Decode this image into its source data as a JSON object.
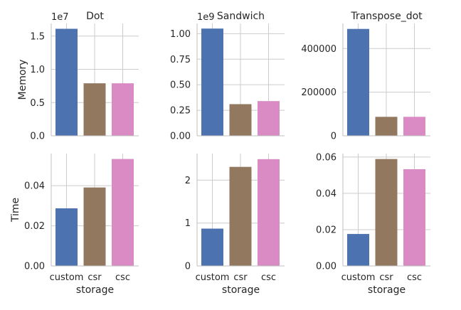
{
  "chart_data": {
    "type": "bar",
    "layout": "facet-grid",
    "row_labels": [
      "Memory",
      "Time"
    ],
    "xlabel": "storage",
    "categories": [
      "custom",
      "csr",
      "csc"
    ],
    "colors": [
      "#4c72b0",
      "#937860",
      "#da8bc3"
    ],
    "grid": true,
    "panels": [
      {
        "title": "Dot",
        "row": "Memory",
        "ylabel": "Memory",
        "offset_label": "1e7",
        "values": [
          16.1,
          7.9,
          7.9
        ],
        "ylim": [
          0,
          16.9
        ],
        "yticks": [
          0,
          0.5,
          1.0,
          1.5
        ],
        "ytick_scale": 10,
        "ytick_labels": [
          "0.0",
          "0.5",
          "1.0",
          "1.5"
        ]
      },
      {
        "title": "Sandwich",
        "row": "Memory",
        "ylabel": "",
        "offset_label": "1e9",
        "values": [
          1.05,
          0.31,
          0.34
        ],
        "ylim": [
          0,
          1.1
        ],
        "yticks": [
          0,
          0.25,
          0.5,
          0.75,
          1.0
        ],
        "ytick_scale": 1,
        "ytick_labels": [
          "0.00",
          "0.25",
          "0.50",
          "0.75",
          "1.00"
        ]
      },
      {
        "title": "Transpose_dot",
        "row": "Memory",
        "ylabel": "",
        "offset_label": "",
        "values": [
          490000,
          87000,
          87000
        ],
        "ylim": [
          0,
          515000
        ],
        "yticks": [
          0,
          200000,
          400000
        ],
        "ytick_scale": 1,
        "ytick_labels": [
          "0",
          "200000",
          "400000"
        ]
      },
      {
        "title": "",
        "row": "Time",
        "ylabel": "Time",
        "offset_label": "",
        "values": [
          0.0287,
          0.0391,
          0.0533
        ],
        "ylim": [
          0,
          0.056
        ],
        "yticks": [
          0,
          0.02,
          0.04
        ],
        "ytick_scale": 1,
        "ytick_labels": [
          "0.00",
          "0.02",
          "0.04"
        ]
      },
      {
        "title": "",
        "row": "Time",
        "ylabel": "",
        "offset_label": "",
        "values": [
          0.87,
          2.31,
          2.49
        ],
        "ylim": [
          0,
          2.62
        ],
        "yticks": [
          0,
          1,
          2
        ],
        "ytick_scale": 1,
        "ytick_labels": [
          "0",
          "1",
          "2"
        ]
      },
      {
        "title": "",
        "row": "Time",
        "ylabel": "",
        "offset_label": "",
        "values": [
          0.0176,
          0.0589,
          0.0533
        ],
        "ylim": [
          0,
          0.0619
        ],
        "yticks": [
          0,
          0.02,
          0.04,
          0.06
        ],
        "ytick_scale": 1,
        "ytick_labels": [
          "0.00",
          "0.02",
          "0.04",
          "0.06"
        ]
      }
    ]
  }
}
